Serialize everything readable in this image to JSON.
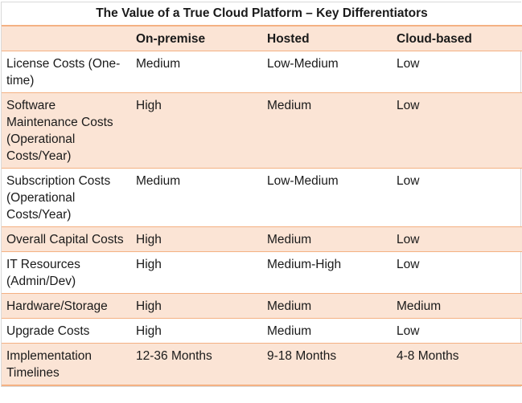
{
  "table": {
    "title": "The Value of a True Cloud Platform – Key Differentiators",
    "headers": [
      "",
      "On-premise",
      "Hosted",
      "Cloud-based"
    ],
    "rows": [
      [
        "License Costs (One-time)",
        "Medium",
        "Low-Medium",
        "Low"
      ],
      [
        "Software Maintenance Costs (Operational Costs/Year)",
        "High",
        "Medium",
        "Low"
      ],
      [
        "Subscription Costs (Operational Costs/Year)",
        "Medium",
        "Low-Medium",
        "Low"
      ],
      [
        "Overall Capital Costs",
        "High",
        "Medium",
        "Low"
      ],
      [
        "IT Resources (Admin/Dev)",
        "High",
        "Medium-High",
        "Low"
      ],
      [
        "Hardware/Storage",
        "High",
        "Medium",
        "Medium"
      ],
      [
        "Upgrade Costs",
        "High",
        "Medium",
        "Low"
      ],
      [
        "Implementation Timelines",
        "12-36 Months",
        "9-18 Months",
        "4-8 Months"
      ]
    ]
  },
  "colors": {
    "band": "#fbe4d5",
    "rule": "#f4b183"
  }
}
